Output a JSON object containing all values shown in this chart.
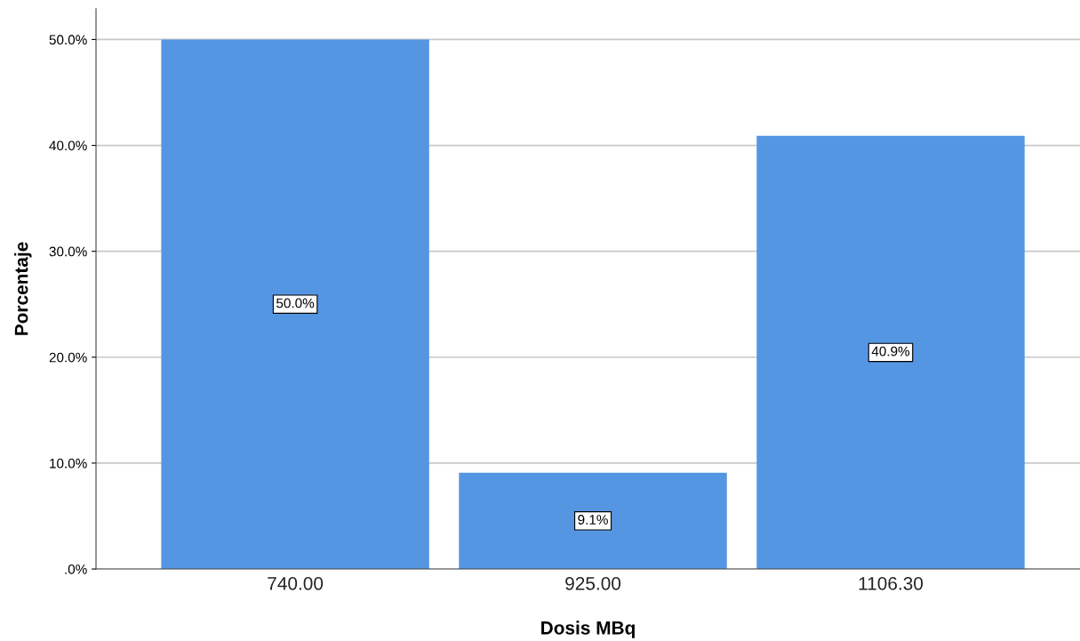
{
  "chart_data": {
    "type": "bar",
    "xlabel": "Dosis MBq",
    "ylabel": "Porcentaje",
    "categories": [
      "740.00",
      "925.00",
      "1106.30"
    ],
    "values": [
      50.0,
      9.1,
      40.9
    ],
    "color": "#5596e3",
    "value_labels": [
      "50.0%",
      "9.1%",
      "40.9%"
    ],
    "ylim": [
      0,
      52.9
    ],
    "yticks": [
      {
        "value": 0,
        "label": ".0%"
      },
      {
        "value": 10,
        "label": "10.0%"
      },
      {
        "value": 20,
        "label": "20.0%"
      },
      {
        "value": 30,
        "label": "30.0%"
      },
      {
        "value": 40,
        "label": "40.0%"
      },
      {
        "value": 50,
        "label": "50.0%"
      }
    ],
    "grid": "y",
    "legend": false
  }
}
